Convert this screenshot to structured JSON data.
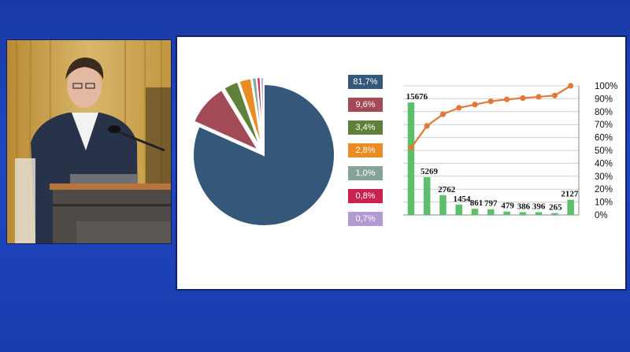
{
  "video": {
    "description_icon": "speaker-camera-feed"
  },
  "slide": {
    "colors": {
      "pie": [
        "#35587a",
        "#a24a55",
        "#5f7f3a",
        "#e98c23",
        "#86a39a",
        "#c9224e",
        "#b49ad4"
      ],
      "bars": "#5cc06a",
      "line": "#e07a3a",
      "grid": "#cfcfcf"
    }
  },
  "chart_data": [
    {
      "type": "pie",
      "title": "",
      "slices": [
        {
          "label": "81,7%",
          "value": 81.7
        },
        {
          "label": "9,6%",
          "value": 9.6
        },
        {
          "label": "3,4%",
          "value": 3.4
        },
        {
          "label": "2,8%",
          "value": 2.8
        },
        {
          "label": "1,0%",
          "value": 1.0
        },
        {
          "label": "0,8%",
          "value": 0.8
        },
        {
          "label": "0,7%",
          "value": 0.7
        }
      ],
      "legend_placement": "right"
    },
    {
      "type": "bar",
      "subtype": "pareto",
      "title": "",
      "categories": [
        "",
        "",
        "",
        "",
        "",
        "",
        "",
        "",
        "",
        "",
        ""
      ],
      "series": [
        {
          "values": [
            15676,
            5269,
            2762,
            1454,
            861,
            797,
            479,
            386,
            396,
            265,
            2127
          ],
          "labels": [
            "15676",
            "5269",
            "2762",
            "1454",
            "861",
            "797",
            "479",
            "386",
            "396",
            "265",
            "2127"
          ]
        },
        {
          "type": "line",
          "axis": "right",
          "values": [
            0.52,
            0.69,
            0.78,
            0.83,
            0.855,
            0.88,
            0.895,
            0.905,
            0.915,
            0.925,
            1.0
          ]
        }
      ],
      "ylim": [
        0,
        18000
      ],
      "y2_ticks": [
        "0%",
        "10%",
        "20%",
        "30%",
        "40%",
        "50%",
        "60%",
        "70%",
        "80%",
        "90%",
        "100%"
      ],
      "y2lim": [
        0,
        1
      ],
      "grid": true
    }
  ]
}
